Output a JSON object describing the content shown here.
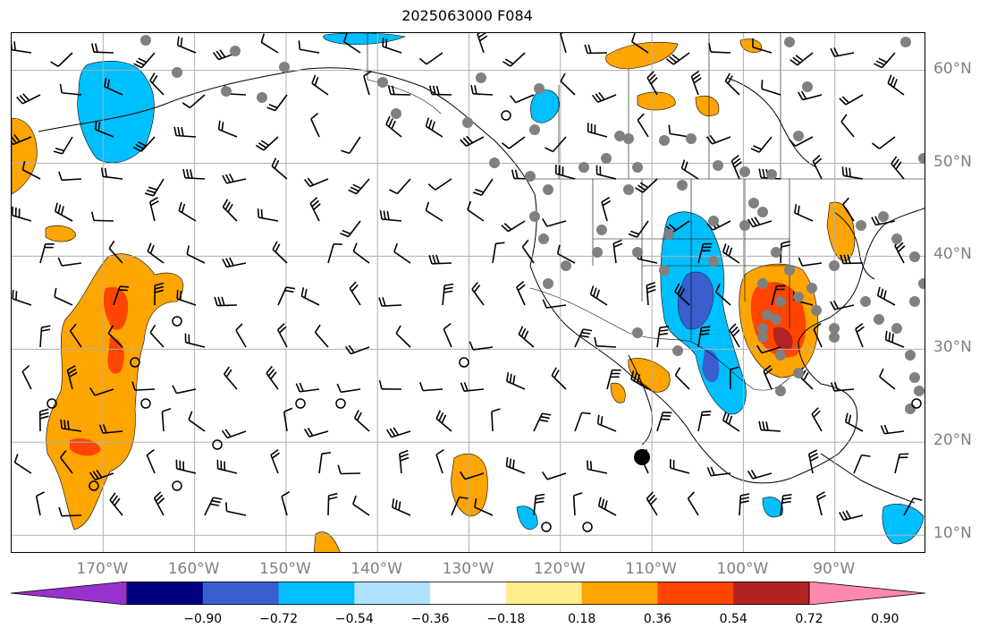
{
  "title": "2025063000 F084",
  "lat_labels": [
    "60°N",
    "50°N",
    "40°N",
    "30°N",
    "20°N",
    "10°N"
  ],
  "lon_labels": [
    "170°W",
    "160°W",
    "150°W",
    "140°W",
    "130°W",
    "120°W",
    "110°W",
    "100°W",
    "90°W"
  ],
  "colorbar": {
    "ticks": [
      "−0.90",
      "−0.72",
      "−0.54",
      "−0.36",
      "−0.18",
      "0.18",
      "0.36",
      "0.54",
      "0.72",
      "0.90"
    ],
    "colors": [
      "#9932cc",
      "#000080",
      "#3a5fcd",
      "#00bfff",
      "#b0e2ff",
      "#ffffff",
      "#ffec8b",
      "#ffa500",
      "#ff4500",
      "#b22222",
      "#ff89ac"
    ]
  },
  "map": {
    "lon_range": [
      -180,
      -80
    ],
    "lat_range": [
      8,
      64
    ],
    "grid": true,
    "positive_color": "#ffa500",
    "strong_positive_color": "#ff4500",
    "negative_color": "#00bfff",
    "strong_negative_color": "#3a5fcd",
    "station_marker_color": "#808080"
  }
}
